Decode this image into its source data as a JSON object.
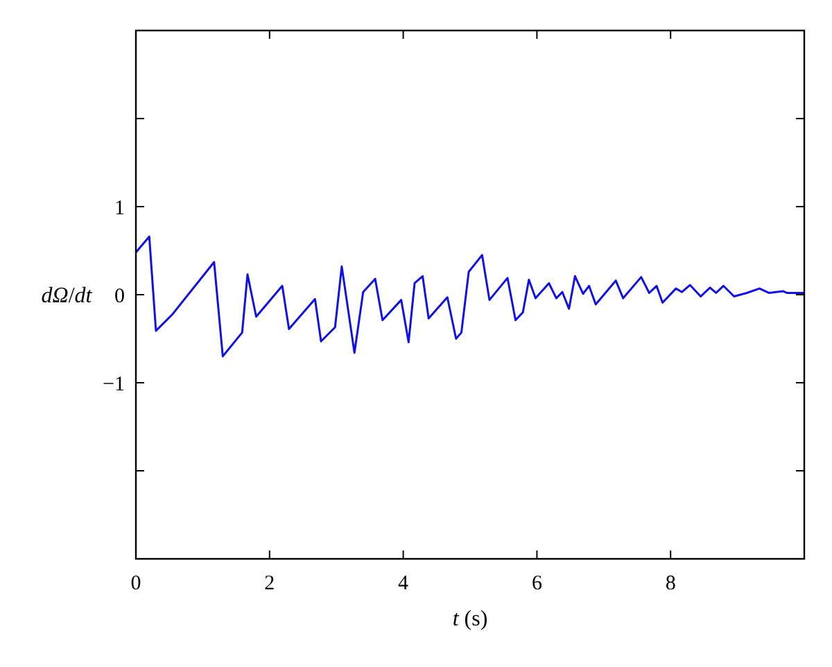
{
  "chart_data": {
    "type": "line",
    "xlabel": "t (s)",
    "ylabel": "dΩ/dt",
    "xlim": [
      0,
      10
    ],
    "ylim": [
      -3,
      3
    ],
    "xticks": [
      0,
      2,
      4,
      6,
      8
    ],
    "yticks": [
      {
        "value": -2,
        "label": null
      },
      -1,
      0,
      1,
      {
        "value": 2,
        "label": null
      }
    ],
    "grid": false,
    "marker": "none",
    "line_style": "solid",
    "series": [
      {
        "color": "#1010e8",
        "x": [
          0,
          0.2,
          0.3,
          0.55,
          1.17,
          1.3,
          1.59,
          1.67,
          1.8,
          2.19,
          2.29,
          2.68,
          2.77,
          2.98,
          3.08,
          3.27,
          3.4,
          3.58,
          3.69,
          3.97,
          4.08,
          4.17,
          4.29,
          4.38,
          4.66,
          4.79,
          4.87,
          4.98,
          5.18,
          5.29,
          5.56,
          5.68,
          5.79,
          5.88,
          5.98,
          6.18,
          6.29,
          6.38,
          6.48,
          6.57,
          6.69,
          6.78,
          6.88,
          7.18,
          7.29,
          7.56,
          7.68,
          7.79,
          7.88,
          8.08,
          8.17,
          8.29,
          8.45,
          8.59,
          8.68,
          8.79,
          8.95,
          9.14,
          9.33,
          9.47,
          9.68,
          9.74,
          9.94,
          10
        ],
        "values": [
          0.48,
          0.66,
          -0.41,
          -0.22,
          0.37,
          -0.7,
          -0.43,
          0.23,
          -0.25,
          0.1,
          -0.39,
          -0.05,
          -0.53,
          -0.37,
          0.32,
          -0.66,
          0.03,
          0.18,
          -0.29,
          -0.06,
          -0.54,
          0.13,
          0.21,
          -0.27,
          -0.03,
          -0.5,
          -0.43,
          0.26,
          0.45,
          -0.06,
          0.19,
          -0.29,
          -0.2,
          0.17,
          -0.04,
          0.13,
          -0.04,
          0.03,
          -0.16,
          0.21,
          0.01,
          0.1,
          -0.11,
          0.16,
          -0.04,
          0.2,
          0.02,
          0.1,
          -0.09,
          0.07,
          0.03,
          0.11,
          -0.02,
          0.08,
          0.02,
          0.1,
          -0.02,
          0.02,
          0.07,
          0.02,
          0.04,
          0.02,
          0.02,
          0.02
        ]
      }
    ]
  }
}
